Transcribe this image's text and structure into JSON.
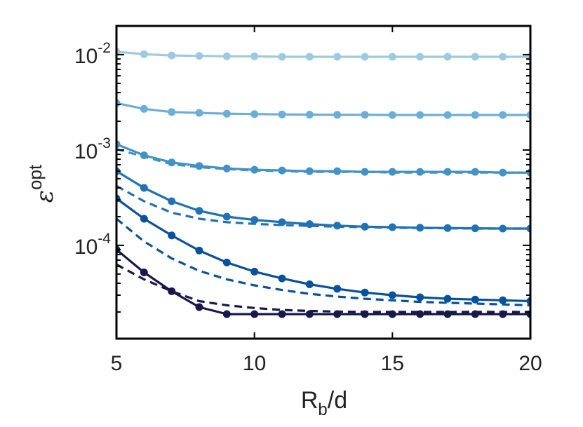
{
  "chart_data": {
    "type": "line",
    "xlabel": "R_b/d",
    "ylabel": "ε^opt",
    "xlim": [
      5,
      20
    ],
    "ylim": [
      1.05e-05,
      0.02
    ],
    "yscale": "log",
    "grid": false,
    "x_ticks": [
      5,
      10,
      15,
      20
    ],
    "y_ticks": [
      {
        "value": 0.01,
        "base": "10",
        "exp": "-2"
      },
      {
        "value": 0.001,
        "base": "10",
        "exp": "-3"
      },
      {
        "value": 0.0001,
        "base": "10",
        "exp": "-4"
      }
    ],
    "x": [
      5,
      6,
      7,
      8,
      9,
      10,
      11,
      12,
      13,
      14,
      15,
      16,
      17,
      18,
      19,
      20
    ],
    "series": [
      {
        "color": "#9ecae1",
        "style": "solid",
        "markers": true,
        "values": [
          0.0107,
          0.0101,
          0.0098,
          0.0097,
          0.0096,
          0.0096,
          0.0095,
          0.0095,
          0.0095,
          0.0095,
          0.0095,
          0.0095,
          0.0095,
          0.0095,
          0.0095,
          0.0095
        ]
      },
      {
        "color": "#6baed6",
        "style": "solid",
        "markers": true,
        "values": [
          0.0031,
          0.0027,
          0.0025,
          0.00245,
          0.0024,
          0.00238,
          0.00236,
          0.00235,
          0.00234,
          0.00234,
          0.00233,
          0.00233,
          0.00233,
          0.00233,
          0.00233,
          0.00233
        ]
      },
      {
        "color": "#4292c6",
        "style": "dashed",
        "markers": false,
        "values": [
          0.00102,
          0.00085,
          0.00071,
          0.00066,
          0.00063,
          0.00061,
          0.0006,
          0.00059,
          0.00059,
          0.00059,
          0.00058,
          0.00058,
          0.00058,
          0.00058,
          0.00058,
          0.00058
        ]
      },
      {
        "color": "#4292c6",
        "style": "solid",
        "markers": true,
        "values": [
          0.00115,
          0.00088,
          0.00074,
          0.00068,
          0.00064,
          0.00062,
          0.00061,
          0.0006,
          0.0006,
          0.00059,
          0.00059,
          0.00059,
          0.00059,
          0.00059,
          0.00058,
          0.00058
        ]
      },
      {
        "color": "#2171b5",
        "style": "dashed",
        "markers": false,
        "values": [
          0.00042,
          0.00029,
          0.00022,
          0.00019,
          0.000175,
          0.000168,
          0.000163,
          0.00016,
          0.000157,
          0.000155,
          0.000153,
          0.000152,
          0.000151,
          0.00015,
          0.00015,
          0.00015
        ]
      },
      {
        "color": "#2171b5",
        "style": "solid",
        "markers": true,
        "values": [
          0.0006,
          0.0004,
          0.00029,
          0.00023,
          0.0002,
          0.000185,
          0.000175,
          0.000167,
          0.000161,
          0.000157,
          0.000155,
          0.000153,
          0.000152,
          0.000151,
          0.00015,
          0.00015
        ]
      },
      {
        "color": "#08519c",
        "style": "dashed",
        "markers": false,
        "values": [
          0.00019,
          0.00011,
          7.3e-05,
          5.4e-05,
          4.4e-05,
          3.8e-05,
          3.4e-05,
          3.1e-05,
          2.9e-05,
          2.75e-05,
          2.65e-05,
          2.55e-05,
          2.5e-05,
          2.45e-05,
          2.4e-05,
          2.35e-05
        ]
      },
      {
        "color": "#08519c",
        "style": "solid",
        "markers": true,
        "values": [
          0.00031,
          0.00019,
          0.000127,
          8.8e-05,
          6.6e-05,
          5.3e-05,
          4.5e-05,
          3.9e-05,
          3.5e-05,
          3.2e-05,
          3e-05,
          2.85e-05,
          2.75e-05,
          2.7e-05,
          2.65e-05,
          2.6e-05
        ]
      },
      {
        "color": "#18184a",
        "style": "dashed",
        "markers": false,
        "values": [
          6.3e-05,
          4.4e-05,
          3.3e-05,
          2.6e-05,
          2.35e-05,
          2.2e-05,
          2.1e-05,
          2.05e-05,
          2.02e-05,
          2e-05,
          2e-05,
          2e-05,
          2e-05,
          2e-05,
          2e-05,
          2e-05
        ]
      },
      {
        "color": "#18184a",
        "style": "solid",
        "markers": true,
        "values": [
          9e-05,
          5.2e-05,
          3.3e-05,
          2.25e-05,
          1.9e-05,
          1.9e-05,
          1.9e-05,
          1.9e-05,
          1.9e-05,
          1.9e-05,
          1.9e-05,
          1.9e-05,
          1.9e-05,
          1.9e-05,
          1.9e-05,
          1.9e-05
        ]
      }
    ]
  }
}
